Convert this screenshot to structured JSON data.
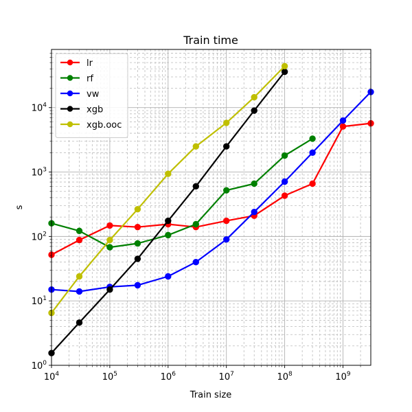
{
  "chart_data": {
    "type": "line",
    "title": "Train time",
    "xlabel": "Train size",
    "ylabel": "s",
    "xscale": "log",
    "yscale": "log",
    "xlim": [
      10000,
      3000000000
    ],
    "ylim": [
      1,
      80000
    ],
    "x_ticks": [
      {
        "value": 10000,
        "base": "10",
        "exp": "4"
      },
      {
        "value": 100000,
        "base": "10",
        "exp": "5"
      },
      {
        "value": 1000000,
        "base": "10",
        "exp": "6"
      },
      {
        "value": 10000000,
        "base": "10",
        "exp": "7"
      },
      {
        "value": 100000000,
        "base": "10",
        "exp": "8"
      },
      {
        "value": 1000000000,
        "base": "10",
        "exp": "9"
      }
    ],
    "y_ticks": [
      {
        "value": 1,
        "base": "10",
        "exp": "0"
      },
      {
        "value": 10,
        "base": "10",
        "exp": "1"
      },
      {
        "value": 100,
        "base": "10",
        "exp": "2"
      },
      {
        "value": 1000,
        "base": "10",
        "exp": "3"
      },
      {
        "value": 10000,
        "base": "10",
        "exp": "4"
      }
    ],
    "grid": true,
    "legend_position": "top-left",
    "series": [
      {
        "name": "lr",
        "color": "#ff0000",
        "points": [
          [
            10000,
            52
          ],
          [
            30000,
            88
          ],
          [
            100000,
            148
          ],
          [
            300000,
            140
          ],
          [
            1000000,
            155
          ],
          [
            3000000,
            140
          ],
          [
            10000000,
            175
          ],
          [
            30000000,
            210
          ],
          [
            100000000,
            430
          ],
          [
            300000000,
            660
          ],
          [
            1000000000,
            5100
          ],
          [
            3000000000,
            5700
          ]
        ]
      },
      {
        "name": "rf",
        "color": "#008000",
        "points": [
          [
            10000,
            160
          ],
          [
            30000,
            122
          ],
          [
            100000,
            68
          ],
          [
            300000,
            78
          ],
          [
            1000000,
            105
          ],
          [
            3000000,
            155
          ],
          [
            10000000,
            520
          ],
          [
            30000000,
            660
          ],
          [
            100000000,
            1800
          ],
          [
            300000000,
            3300
          ]
        ]
      },
      {
        "name": "vw",
        "color": "#0000ff",
        "points": [
          [
            10000,
            15
          ],
          [
            30000,
            14
          ],
          [
            100000,
            16.5
          ],
          [
            300000,
            17.5
          ],
          [
            1000000,
            24
          ],
          [
            3000000,
            40
          ],
          [
            10000000,
            90
          ],
          [
            30000000,
            240
          ],
          [
            100000000,
            710
          ],
          [
            300000000,
            2000
          ],
          [
            1000000000,
            6300
          ],
          [
            3000000000,
            17500
          ]
        ]
      },
      {
        "name": "xgb",
        "color": "#000000",
        "points": [
          [
            10000,
            1.55
          ],
          [
            30000,
            4.6
          ],
          [
            100000,
            15
          ],
          [
            300000,
            45
          ],
          [
            1000000,
            175
          ],
          [
            3000000,
            600
          ],
          [
            10000000,
            2500
          ],
          [
            30000000,
            9000
          ],
          [
            100000000,
            36000
          ]
        ]
      },
      {
        "name": "xgb.ooc",
        "color": "#bfbf00",
        "points": [
          [
            10000,
            6.5
          ],
          [
            30000,
            24
          ],
          [
            100000,
            88
          ],
          [
            300000,
            265
          ],
          [
            1000000,
            940
          ],
          [
            3000000,
            2500
          ],
          [
            10000000,
            5800
          ],
          [
            30000000,
            14500
          ],
          [
            100000000,
            44000
          ]
        ]
      }
    ]
  }
}
